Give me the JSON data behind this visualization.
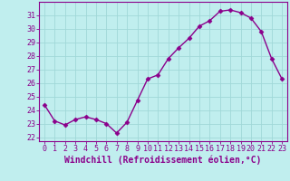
{
  "x": [
    0,
    1,
    2,
    3,
    4,
    5,
    6,
    7,
    8,
    9,
    10,
    11,
    12,
    13,
    14,
    15,
    16,
    17,
    18,
    19,
    20,
    21,
    22,
    23
  ],
  "y": [
    24.4,
    23.2,
    22.9,
    23.3,
    23.5,
    23.3,
    23.0,
    22.3,
    23.1,
    24.7,
    26.3,
    26.6,
    27.8,
    28.6,
    29.3,
    30.2,
    30.6,
    31.3,
    31.4,
    31.2,
    30.8,
    29.8,
    27.8,
    26.3
  ],
  "line_color": "#8b008b",
  "marker": "D",
  "marker_size": 2.5,
  "bg_color": "#c0eeee",
  "grid_color": "#a0d8d8",
  "xlabel": "Windchill (Refroidissement éolien,°C)",
  "xlabel_color": "#8b008b",
  "xlabel_fontsize": 7,
  "ylabel_ticks": [
    22,
    23,
    24,
    25,
    26,
    27,
    28,
    29,
    30,
    31
  ],
  "xtick_labels": [
    "0",
    "1",
    "2",
    "3",
    "4",
    "5",
    "6",
    "7",
    "8",
    "9",
    "10",
    "11",
    "12",
    "13",
    "14",
    "15",
    "16",
    "17",
    "18",
    "19",
    "20",
    "21",
    "22",
    "23"
  ],
  "ylim": [
    21.7,
    32.0
  ],
  "xlim": [
    -0.5,
    23.5
  ],
  "tick_color": "#8b008b",
  "tick_fontsize": 6,
  "spine_color": "#8b008b",
  "linewidth": 1.0
}
